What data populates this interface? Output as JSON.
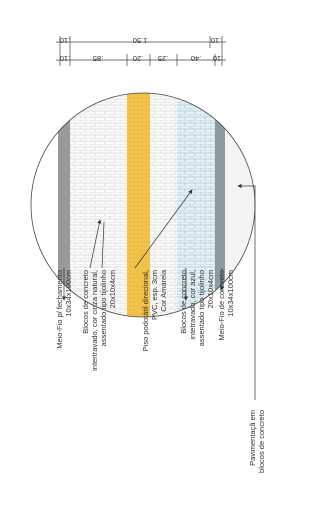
{
  "dimensions": {
    "top": [
      ".10",
      "1.50",
      ".10"
    ],
    "bottom": [
      ".10",
      ".85",
      ".20",
      ".25",
      ".40",
      ".10"
    ]
  },
  "labels": [
    {
      "lines": [
        "Meio-Fio  p/ fechamento",
        "10x34x100cm"
      ]
    },
    {
      "lines": [
        "Blocos de concreto",
        "intertravado, cor cinza natural,",
        "assentado tipo tijolinho",
        "20x10x4cm"
      ]
    },
    {
      "lines": [
        "Piso podotátil direcional,",
        "PVC, esp. 3cm",
        "Cor Amarela"
      ]
    },
    {
      "lines": [
        "Blocos de concreto",
        "intetravado, cor azul,",
        "assentado tipo tijolinho",
        "20x10x4cm"
      ]
    },
    {
      "lines": [
        "Meio-Fio de concreto",
        "10x34x100cm"
      ]
    },
    {
      "lines": [
        "Pavimentaçã em",
        "blocos de concreto"
      ]
    }
  ]
}
